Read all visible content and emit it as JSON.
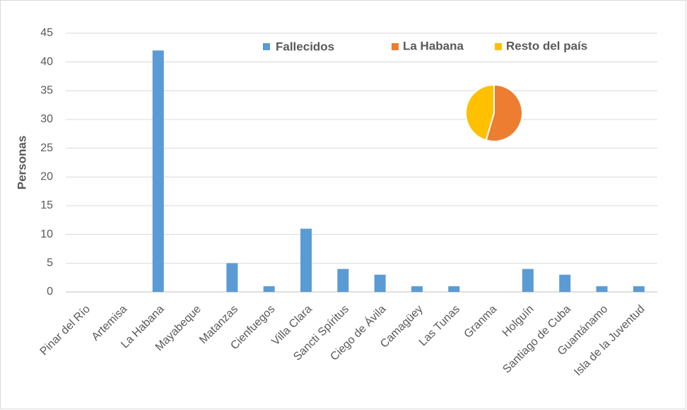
{
  "chart_data": [
    {
      "type": "bar",
      "ylabel": "Personas",
      "categories": [
        "Pinar del Río",
        "Artemisa",
        "La Habana",
        "Mayabeque",
        "Matanzas",
        "Cienfuegos",
        "Villa Clara",
        "Sancti Spíritus",
        "Ciego de Ávila",
        "Camagüey",
        "Las Tunas",
        "Granma",
        "Holguín",
        "Santiago de Cuba",
        "Guantánamo",
        "Isla de la Juventud"
      ],
      "series": [
        {
          "name": "Fallecidos",
          "color": "#5b9bd5",
          "values": [
            0,
            0,
            42,
            0,
            5,
            1,
            11,
            4,
            3,
            1,
            1,
            0,
            4,
            3,
            1,
            1
          ]
        }
      ],
      "ylim": [
        0,
        45
      ],
      "yticks": [
        0,
        5,
        10,
        15,
        20,
        25,
        30,
        35,
        40,
        45
      ],
      "grid": true
    },
    {
      "type": "pie",
      "categories": [
        "La Habana",
        "Resto del país"
      ],
      "values": [
        42,
        35
      ],
      "colors": [
        "#ed7d31",
        "#ffc000"
      ]
    }
  ]
}
